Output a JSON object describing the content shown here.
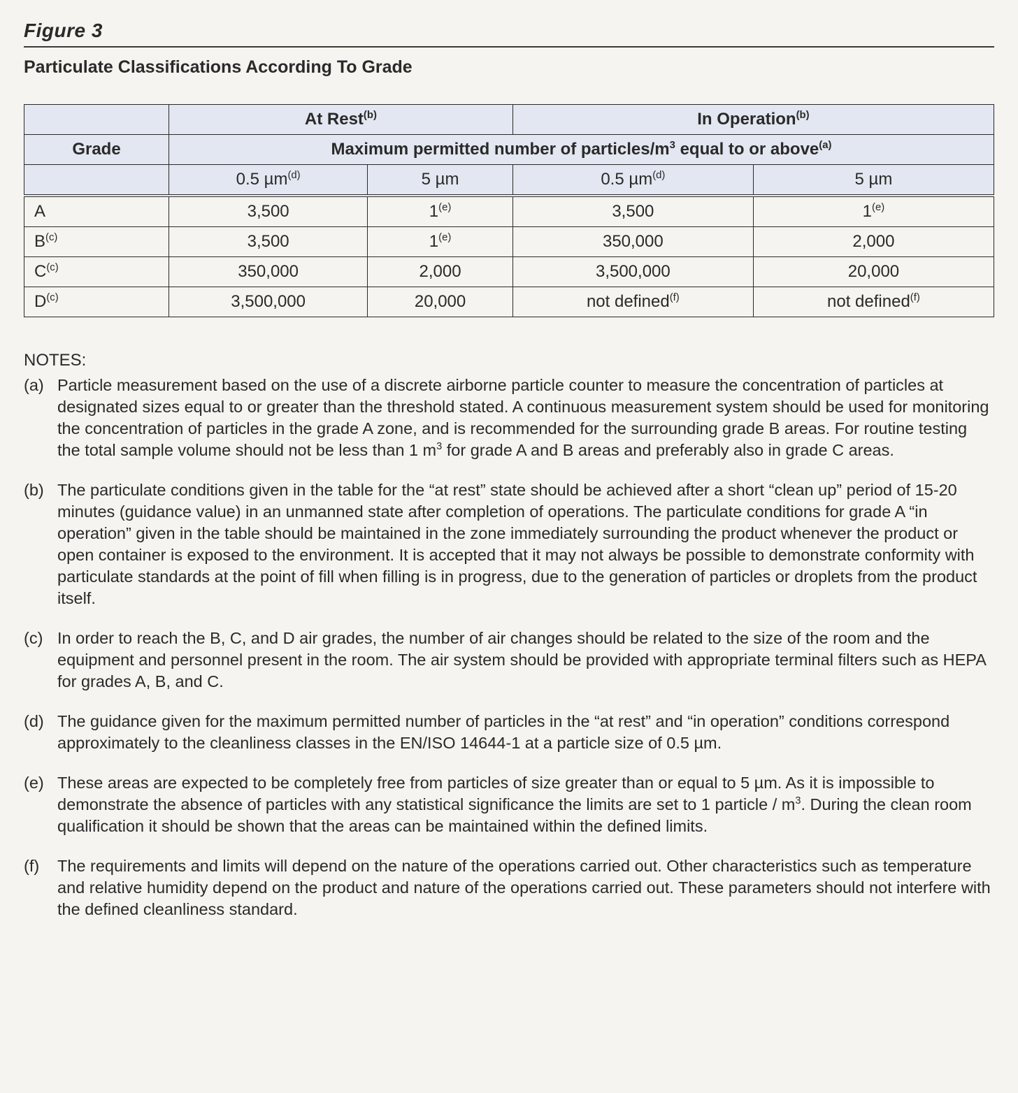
{
  "figure_label": "Figure 3",
  "title": "Particulate Classifications According To Grade",
  "colors": {
    "page_bg": "#f5f4f0",
    "text": "#2a2a2a",
    "table_header_bg": "#e3e7f1",
    "rule": "#3a3a3a",
    "cell_border": "#2a2a2a"
  },
  "typography": {
    "family": "Arial, Helvetica, sans-serif",
    "figure_label_pt": 21,
    "title_pt": 19,
    "table_pt": 18,
    "notes_pt": 18
  },
  "table": {
    "grade_header": "Grade",
    "at_rest_header": {
      "text": "At Rest",
      "sup": "(b)"
    },
    "in_operation_header": {
      "text": "In Operation",
      "sup": "(b)"
    },
    "span_header": {
      "prefix": "Maximum permitted number of particles/m",
      "cubed": "3",
      "suffix": " equal to or above",
      "sup": "(a)"
    },
    "sub_headers": [
      {
        "text": "0.5 µm",
        "sup": "(d)"
      },
      {
        "text": "5 µm",
        "sup": ""
      },
      {
        "text": "0.5 µm",
        "sup": "(d)"
      },
      {
        "text": "5 µm",
        "sup": ""
      }
    ],
    "rows": [
      {
        "grade": {
          "text": "A",
          "sup": ""
        },
        "cells": [
          {
            "text": "3,500",
            "sup": ""
          },
          {
            "text": "1",
            "sup": "(e)"
          },
          {
            "text": "3,500",
            "sup": ""
          },
          {
            "text": "1",
            "sup": "(e)"
          }
        ]
      },
      {
        "grade": {
          "text": "B",
          "sup": "(c)"
        },
        "cells": [
          {
            "text": "3,500",
            "sup": ""
          },
          {
            "text": "1",
            "sup": "(e)"
          },
          {
            "text": "350,000",
            "sup": ""
          },
          {
            "text": "2,000",
            "sup": ""
          }
        ]
      },
      {
        "grade": {
          "text": "C",
          "sup": "(c)"
        },
        "cells": [
          {
            "text": "350,000",
            "sup": ""
          },
          {
            "text": "2,000",
            "sup": ""
          },
          {
            "text": "3,500,000",
            "sup": ""
          },
          {
            "text": "20,000",
            "sup": ""
          }
        ]
      },
      {
        "grade": {
          "text": "D",
          "sup": "(c)"
        },
        "cells": [
          {
            "text": "3,500,000",
            "sup": ""
          },
          {
            "text": "20,000",
            "sup": ""
          },
          {
            "text": "not defined",
            "sup": "(f)"
          },
          {
            "text": "not defined",
            "sup": "(f)"
          }
        ]
      }
    ]
  },
  "notes_heading": "NOTES:",
  "notes": [
    {
      "marker": "(a)",
      "parts": [
        {
          "t": "Particle measurement based on the use of a discrete airborne particle counter to measure the concentration of particles at designated sizes equal to or greater than the threshold stated. A continuous measurement system should be used for monitoring the concentration of particles in the grade A zone, and is recommended for the surrounding grade B areas. For routine testing the total sample volume should not be less than 1 m"
        },
        {
          "t": "3",
          "sup": true
        },
        {
          "t": " for grade A and B areas and preferably also in grade C areas."
        }
      ]
    },
    {
      "marker": "(b)",
      "parts": [
        {
          "t": "The particulate conditions given in the table for the “at rest” state should be achieved after a short “clean up” period of 15-20 minutes (guidance value) in an unmanned state after completion of operations. The particulate conditions for grade A “in operation” given in the table should be maintained in the zone immediately surrounding the product whenever the product or open container is exposed to the environment. It is accepted that it may not always be possible to demonstrate conformity with particulate standards at the point of fill when filling is in progress, due to the generation of particles or droplets from the product itself."
        }
      ]
    },
    {
      "marker": "(c)",
      "parts": [
        {
          "t": "In order to reach the B, C, and D air grades, the number of air changes should be related to the size of the room and the equipment and personnel present in the room. The air system should be provided with appropriate terminal filters such as HEPA for grades A, B, and C."
        }
      ]
    },
    {
      "marker": "(d)",
      "parts": [
        {
          "t": "The guidance given for the maximum permitted number of particles in the “at rest” and “in operation” conditions correspond approximately to the cleanliness classes in the EN/ISO 14644-1 at a particle size of 0.5 µm."
        }
      ]
    },
    {
      "marker": "(e)",
      "parts": [
        {
          "t": "These areas are expected to be completely free from particles of size greater than or equal to 5 µm. As it is impossible to demonstrate the absence of particles with any statistical significance the limits are set to 1 particle / m"
        },
        {
          "t": "3",
          "sup": true
        },
        {
          "t": ". During the clean room qualification it should be shown that the areas can be maintained within the defined limits."
        }
      ]
    },
    {
      "marker": "(f)",
      "parts": [
        {
          "t": "The requirements and limits will depend on the nature of the operations carried out. Other characteristics such as temperature and relative humidity depend on the product and nature of the operations carried out. These parameters should not interfere with the defined cleanliness standard."
        }
      ]
    }
  ]
}
